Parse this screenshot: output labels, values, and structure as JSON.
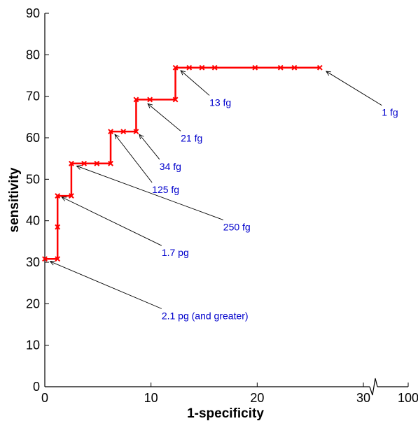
{
  "chart_data": {
    "type": "line",
    "xlabel": "1-specificity",
    "ylabel": "sensitivity",
    "xlim": [
      0,
      100
    ],
    "ylim": [
      0,
      90
    ],
    "x_axis_break": "between 30 and 100",
    "xticks": [
      "0",
      "10",
      "20",
      "30",
      "100"
    ],
    "yticks": [
      "0",
      "10",
      "20",
      "30",
      "40",
      "50",
      "60",
      "70",
      "80",
      "90"
    ],
    "grid": false,
    "colors": {
      "line": "#ff0000",
      "annotation": "#0000cc",
      "axis": "#000000"
    },
    "series": [
      {
        "marker": "x",
        "step": true,
        "points": [
          [
            0,
            30.8
          ],
          [
            1.2,
            30.8
          ],
          [
            1.2,
            38.5
          ],
          [
            1.2,
            46.0
          ],
          [
            2.5,
            46.0
          ],
          [
            2.5,
            53.8
          ],
          [
            3.7,
            53.8
          ],
          [
            4.9,
            53.8
          ],
          [
            6.2,
            53.8
          ],
          [
            6.2,
            61.5
          ],
          [
            7.4,
            61.5
          ],
          [
            8.6,
            61.5
          ],
          [
            8.6,
            69.2
          ],
          [
            9.9,
            69.2
          ],
          [
            12.3,
            69.2
          ],
          [
            12.3,
            76.9
          ],
          [
            13.6,
            76.9
          ],
          [
            14.8,
            76.9
          ],
          [
            16.0,
            76.9
          ],
          [
            19.8,
            76.9
          ],
          [
            22.2,
            76.9
          ],
          [
            23.5,
            76.9
          ],
          [
            25.9,
            76.9
          ]
        ]
      }
    ],
    "annotations": [
      {
        "text": "2.1 pg (and greater)",
        "point": [
          0.5,
          30.2
        ],
        "label_at": [
          11,
          17.8
        ]
      },
      {
        "text": "1.7 pg",
        "point": [
          1.6,
          45.7
        ],
        "label_at": [
          11,
          33
        ]
      },
      {
        "text": "250 fg",
        "point": [
          3.0,
          53.2
        ],
        "label_at": [
          16.8,
          39.2
        ]
      },
      {
        "text": "125 fg",
        "point": [
          6.6,
          60.8
        ],
        "label_at": [
          10.1,
          48.2
        ]
      },
      {
        "text": "34 fg",
        "point": [
          8.9,
          60.8
        ],
        "label_at": [
          10.8,
          53.8
        ]
      },
      {
        "text": "21 fg",
        "point": [
          9.7,
          68.2
        ],
        "label_at": [
          12.8,
          60.6
        ]
      },
      {
        "text": "13 fg",
        "point": [
          12.8,
          76.2
        ],
        "label_at": [
          15.5,
          69.2
        ]
      },
      {
        "text": "1 fg",
        "point": [
          26.5,
          76.0
        ],
        "label_at": [
          30.5,
          66.8
        ]
      }
    ]
  }
}
